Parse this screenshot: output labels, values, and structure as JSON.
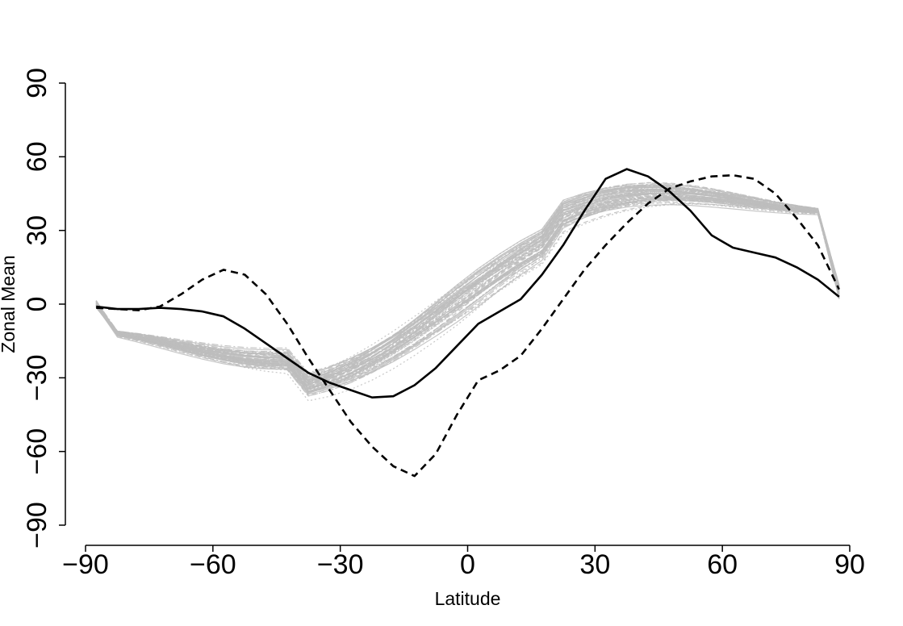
{
  "chart_data": {
    "type": "line",
    "title": "",
    "xlabel": "Latitude",
    "ylabel": "Zonal Mean",
    "xlim": [
      -90,
      90
    ],
    "ylim": [
      -90,
      90
    ],
    "xticks": [
      -90,
      -60,
      -30,
      0,
      30,
      60,
      90
    ],
    "yticks": [
      -90,
      -60,
      -30,
      0,
      30,
      60,
      90
    ],
    "xtick_labels": [
      "−90",
      "−60",
      "−30",
      "0",
      "30",
      "60",
      "90"
    ],
    "ytick_labels": [
      "−90",
      "−60",
      "−30",
      "0",
      "30",
      "60",
      "90"
    ],
    "grid": false,
    "legend": "none",
    "colors": {
      "ensemble": "#bdbdbd",
      "highlight": "#000000"
    },
    "x": [
      -87.5,
      -82.5,
      -77.5,
      -72.5,
      -67.5,
      -62.5,
      -57.5,
      -52.5,
      -47.5,
      -42.5,
      -37.5,
      -32.5,
      -27.5,
      -22.5,
      -17.5,
      -12.5,
      -7.5,
      -2.5,
      2.5,
      7.5,
      12.5,
      17.5,
      22.5,
      27.5,
      32.5,
      37.5,
      42.5,
      47.5,
      52.5,
      57.5,
      62.5,
      67.5,
      72.5,
      77.5,
      82.5,
      87.5
    ],
    "series": [
      {
        "style": "solid",
        "values": [
          -1,
          -2,
          -2,
          -1.5,
          -2,
          -3,
          -5,
          -10,
          -16,
          -22,
          -28,
          -32,
          -35,
          -38,
          -37.5,
          -33,
          -26,
          -17,
          -8,
          -3,
          2,
          12,
          24,
          38,
          51,
          55,
          52,
          46,
          38,
          28,
          23,
          21,
          19,
          15,
          10,
          3
        ]
      },
      {
        "style": "dashed",
        "values": [
          -1.5,
          -2,
          -2.5,
          -1,
          4,
          10,
          14,
          12,
          4,
          -8,
          -22,
          -35,
          -48,
          -58,
          -66,
          -70,
          -61,
          -45,
          -31,
          -27,
          -21,
          -10,
          2,
          14,
          24,
          33,
          41,
          47,
          50,
          52,
          52.5,
          51,
          45,
          35,
          24,
          6
        ]
      }
    ]
  }
}
